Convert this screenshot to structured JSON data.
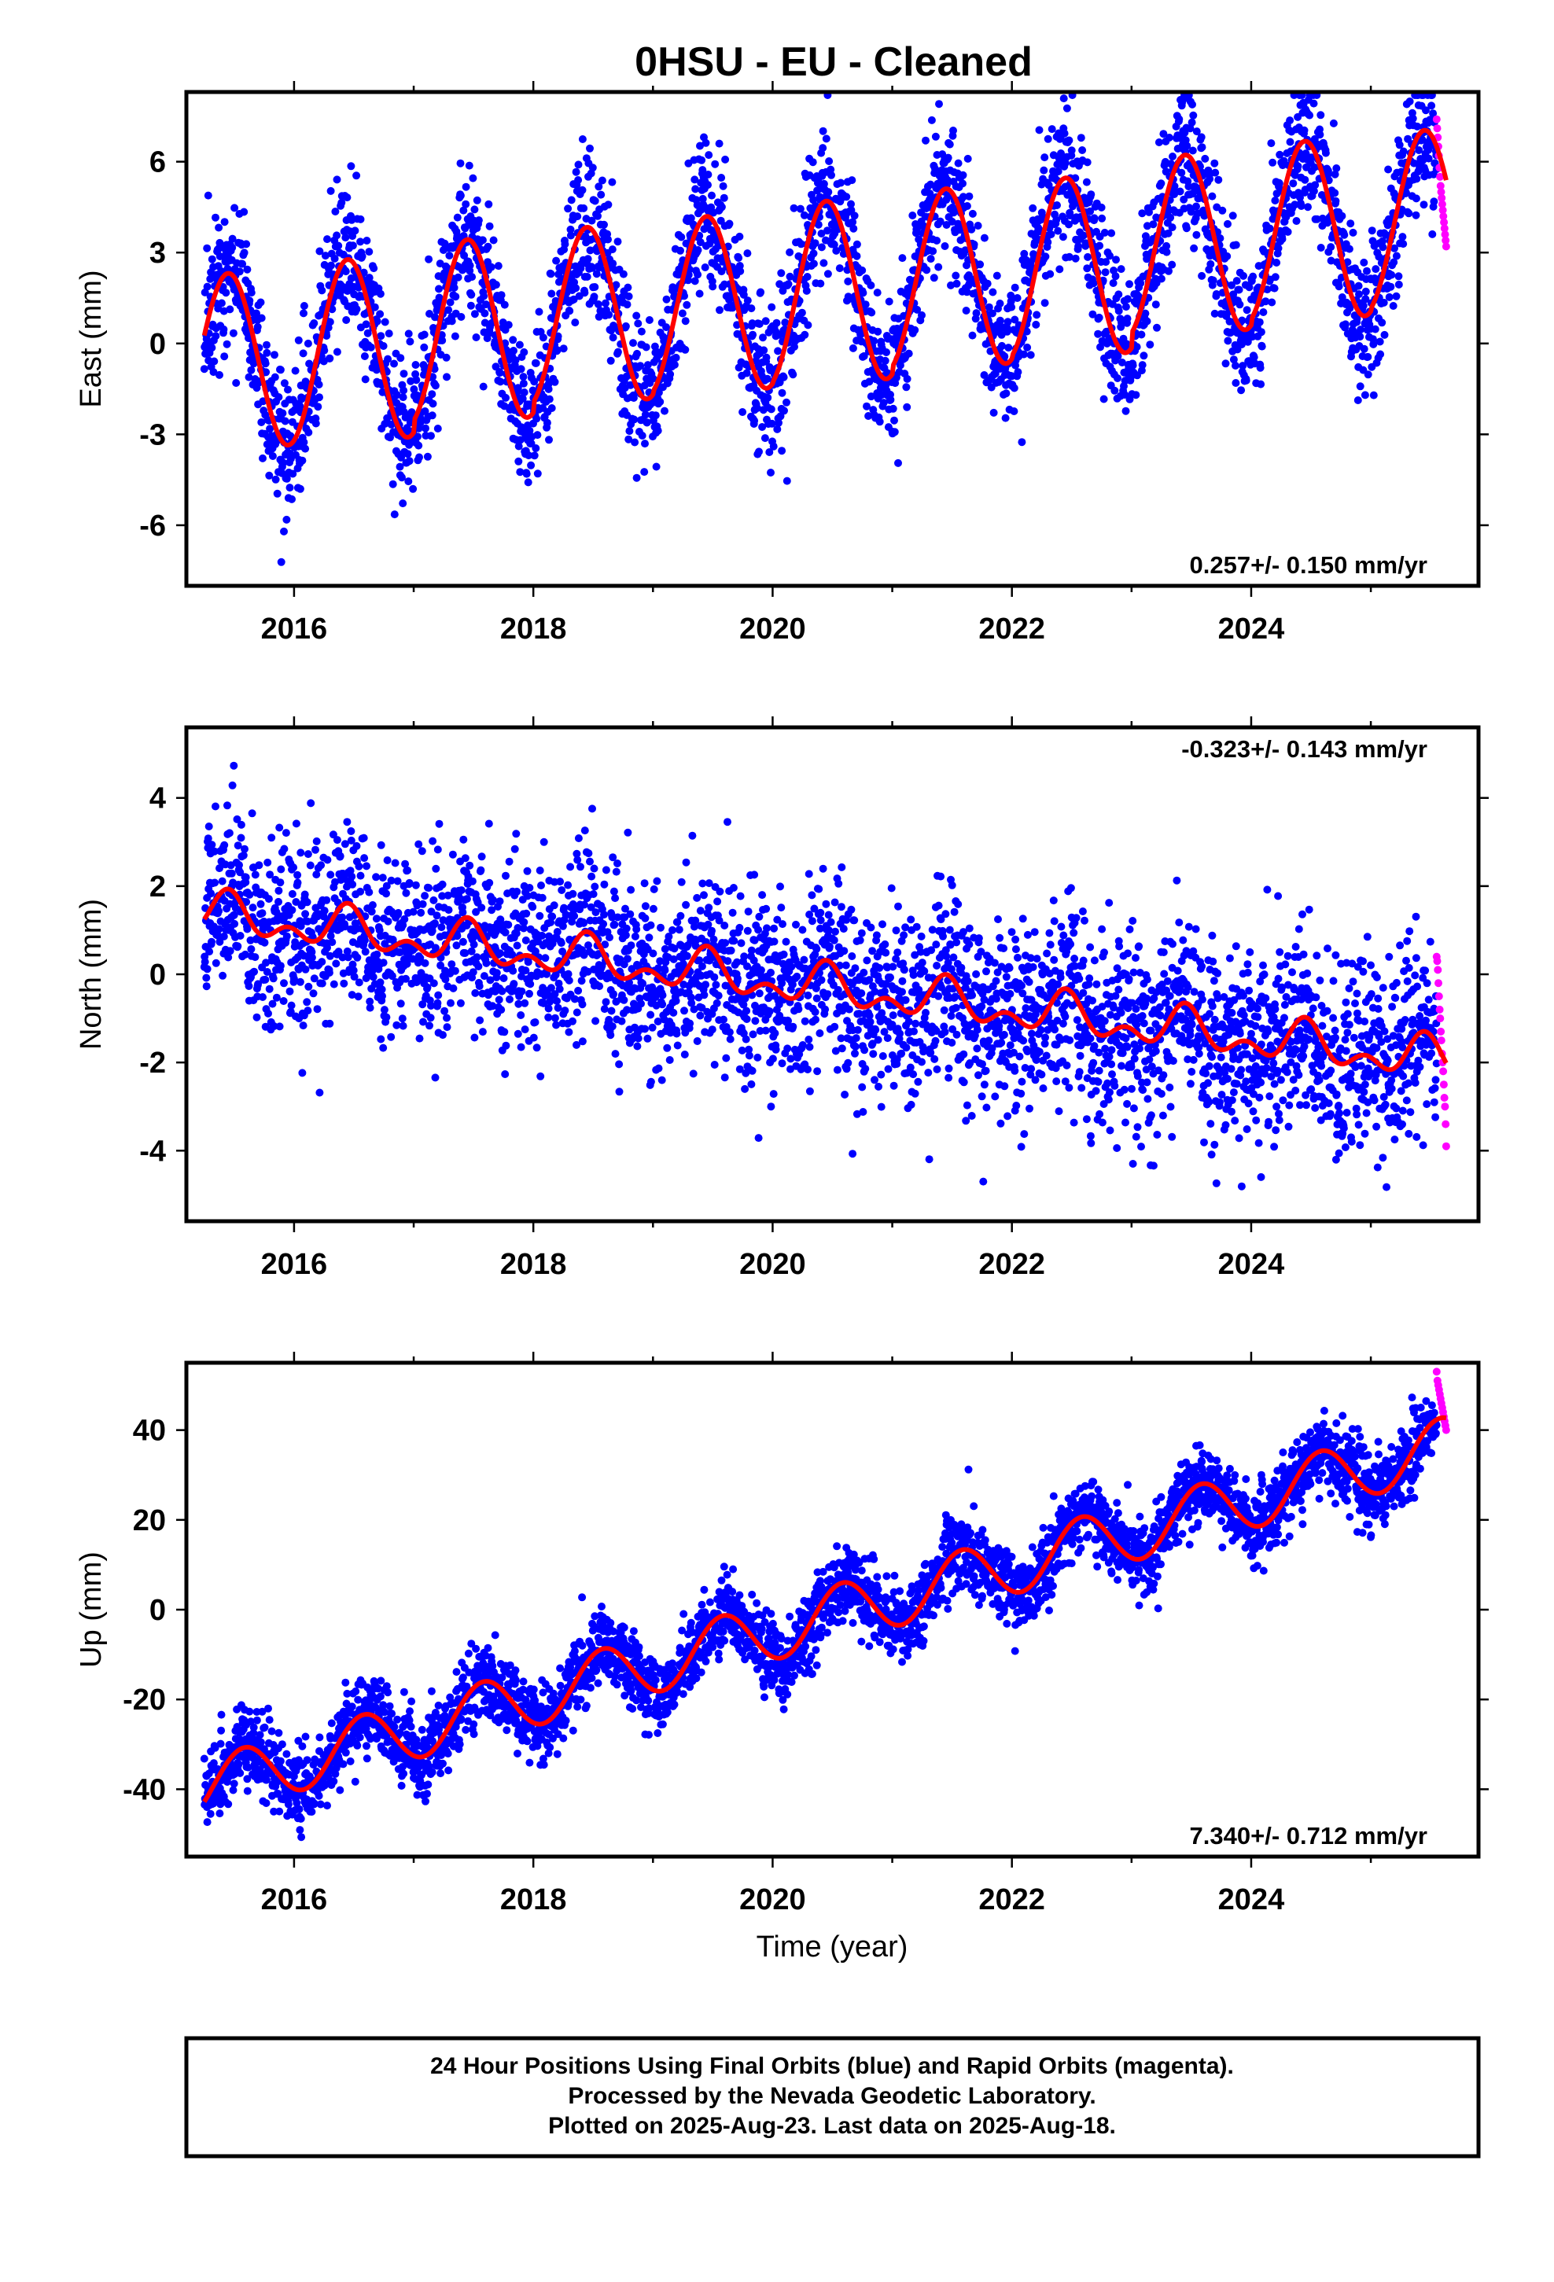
{
  "title": "0HSU  - EU - Cleaned",
  "x_axis_title": "Time (year)",
  "footer": {
    "line1": "24 Hour Positions Using Final Orbits (blue) and Rapid Orbits (magenta).",
    "line2": "Processed by the Nevada Geodetic Laboratory.",
    "line3": "Plotted on 2025-Aug-23. Last data on 2025-Aug-18."
  },
  "colors": {
    "final": "#0000ff",
    "rapid": "#ff00ff",
    "fit": "#ff0000"
  },
  "chart_data": [
    {
      "type": "scatter",
      "ylabel": "East (mm)",
      "rate_label": "0.257+/- 0.150 mm/yr",
      "rate_position": "bottom-right",
      "xlim": [
        2015.1,
        2025.9
      ],
      "ylim": [
        -8,
        8.3
      ],
      "xticks": [
        2016,
        2018,
        2020,
        2022,
        2024
      ],
      "yticks": [
        -6,
        -3,
        0,
        3,
        6
      ],
      "data_start": 2015.25,
      "final_orbit_end": 2025.55,
      "rapid_orbit_end": 2025.63,
      "trend": {
        "intercept_2015": 0.2,
        "rate_per_year": 0.257
      },
      "annual": {
        "amplitudes": [
          2.9,
          3.0,
          3.0,
          2.9,
          2.9,
          3.0,
          2.95,
          2.95,
          2.95,
          2.95,
          2.95
        ],
        "offsets": [
          -0.9,
          -0.8,
          -0.4,
          -0.15,
          -0.05,
          0.1,
          0.3,
          0.4,
          0.9,
          1.1,
          1.2
        ],
        "peak_phase": 0.45
      },
      "scatter_sd": 1.2,
      "rapid_values": [
        7.4,
        7.1,
        6.8,
        6.5,
        6.2,
        5.8,
        5.5,
        5.2,
        5.0,
        4.8,
        4.6,
        4.4,
        4.2,
        4.0,
        3.8,
        3.6,
        3.4,
        3.2
      ]
    },
    {
      "type": "scatter",
      "ylabel": "North (mm)",
      "rate_label": "-0.323+/- 0.143 mm/yr",
      "rate_position": "top-right",
      "xlim": [
        2015.1,
        2025.9
      ],
      "ylim": [
        -5.6,
        5.6
      ],
      "xticks": [
        2016,
        2018,
        2020,
        2022,
        2024
      ],
      "yticks": [
        -4,
        -2,
        0,
        2,
        4
      ],
      "data_start": 2015.25,
      "final_orbit_end": 2025.55,
      "rapid_orbit_end": 2025.63,
      "trend": {
        "intercept_2015": 1.45,
        "rate_per_year": -0.323
      },
      "annual": {
        "amplitudes": [
          0.35,
          0.35,
          0.35,
          0.35,
          0.35,
          0.35,
          0.35,
          0.35,
          0.35,
          0.35,
          0.35
        ],
        "offsets": [
          0,
          0,
          0,
          0,
          0,
          0,
          0,
          0,
          0,
          0,
          0
        ],
        "peak_phase": 0.45
      },
      "semiannual_amplitude": 0.28,
      "scatter_sd": 1.05,
      "rapid_values": [
        0.4,
        0.3,
        0.1,
        -0.2,
        -0.5,
        -0.8,
        -1.0,
        -1.3,
        -1.5,
        -1.8,
        -2.0,
        -2.2,
        -2.5,
        -2.8,
        -3.0,
        -3.4,
        -3.9
      ]
    },
    {
      "type": "scatter",
      "ylabel": "Up (mm)",
      "rate_label": "7.340+/- 0.712 mm/yr",
      "rate_position": "bottom-right",
      "xlim": [
        2015.1,
        2025.9
      ],
      "ylim": [
        -55,
        55
      ],
      "xticks": [
        2016,
        2018,
        2020,
        2022,
        2024
      ],
      "yticks": [
        -40,
        -20,
        0,
        20,
        40
      ],
      "data_start": 2015.25,
      "final_orbit_end": 2025.55,
      "rapid_orbit_end": 2025.63,
      "trend": {
        "intercept_2015": -41.5,
        "rate_per_year": 7.34
      },
      "annual": {
        "amplitudes": [
          6.5,
          6.5,
          6.5,
          6.5,
          6.5,
          6.5,
          6.5,
          6.5,
          6.5,
          6.5,
          6.5
        ],
        "offsets": [
          0,
          0,
          0,
          0,
          0,
          0,
          0,
          0,
          0,
          0,
          0
        ],
        "peak_phase": 0.58
      },
      "scatter_sd": 4.3,
      "rapid_values": [
        53,
        51,
        50,
        49,
        48,
        47,
        46,
        45,
        44,
        43,
        42,
        41,
        40
      ]
    }
  ]
}
